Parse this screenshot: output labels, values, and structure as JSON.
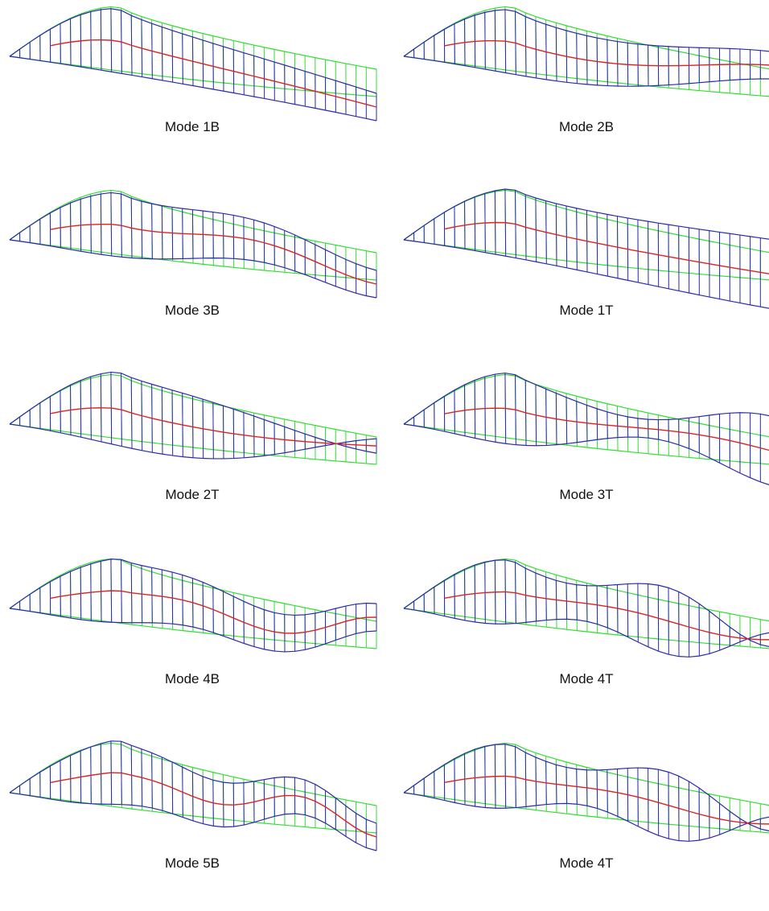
{
  "colors": {
    "undeformed": "#33dd33",
    "deformed": "#2a2aaa",
    "centerline": "#dd2222",
    "caption_text": "#111111"
  },
  "panels": [
    {
      "label": "Mode 1B",
      "mode": {
        "family": "bending",
        "order": 1
      }
    },
    {
      "label": "Mode 2B",
      "mode": {
        "family": "bending",
        "order": 2
      }
    },
    {
      "label": "Mode 3B",
      "mode": {
        "family": "bending",
        "order": 3
      }
    },
    {
      "label": "Mode 1T",
      "mode": {
        "family": "torsion",
        "order": 1
      }
    },
    {
      "label": "Mode 2T",
      "mode": {
        "family": "torsion",
        "order": 2
      }
    },
    {
      "label": "Mode 3T",
      "mode": {
        "family": "torsion",
        "order": 3
      }
    },
    {
      "label": "Mode 4B",
      "mode": {
        "family": "bending",
        "order": 4
      }
    },
    {
      "label": "Mode 4T",
      "mode": {
        "family": "torsion",
        "order": 4
      }
    },
    {
      "label": "Mode 5B",
      "mode": {
        "family": "bending",
        "order": 5
      }
    },
    {
      "label": "Mode 4T",
      "mode": {
        "family": "torsion",
        "order": 4
      }
    }
  ]
}
